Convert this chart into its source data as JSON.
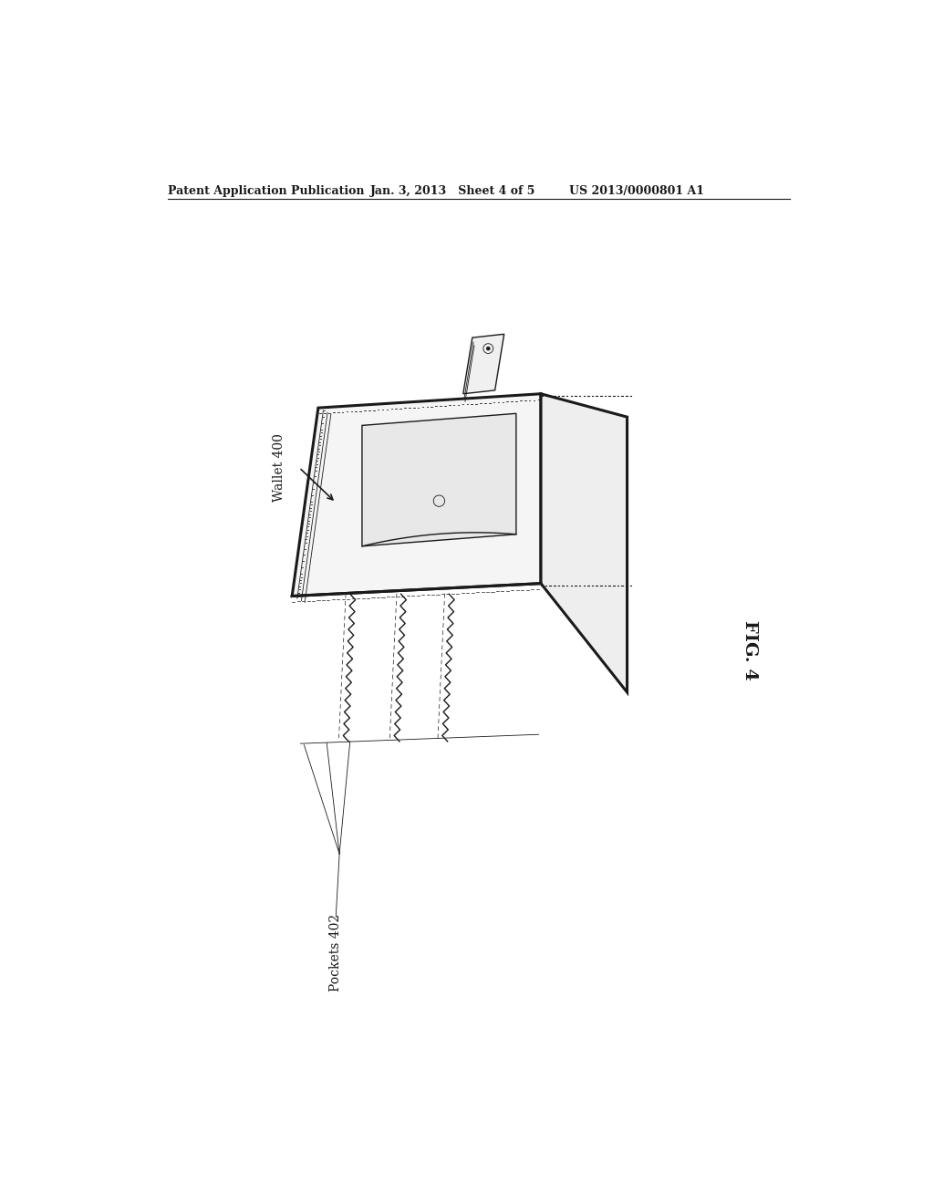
{
  "background_color": "#ffffff",
  "line_color": "#1a1a1a",
  "header_left": "Patent Application Publication",
  "header_mid": "Jan. 3, 2013   Sheet 4 of 5",
  "header_right": "US 2013/0000801 A1",
  "fig_label": "FIG. 4",
  "label_wallet": "Wallet 400",
  "label_pockets": "Pockets 402",
  "annotation_fontsize": 10,
  "header_fontsize": 9,
  "fig_fontsize": 14,
  "lw_outer": 2.2,
  "lw_inner": 1.0,
  "lw_thin": 0.6,
  "lw_stitch": 0.5,
  "face_left": "#f5f5f5",
  "face_right": "#eeeeee",
  "face_card": "#e8e8e8",
  "face_strap": "#f0f0f0"
}
